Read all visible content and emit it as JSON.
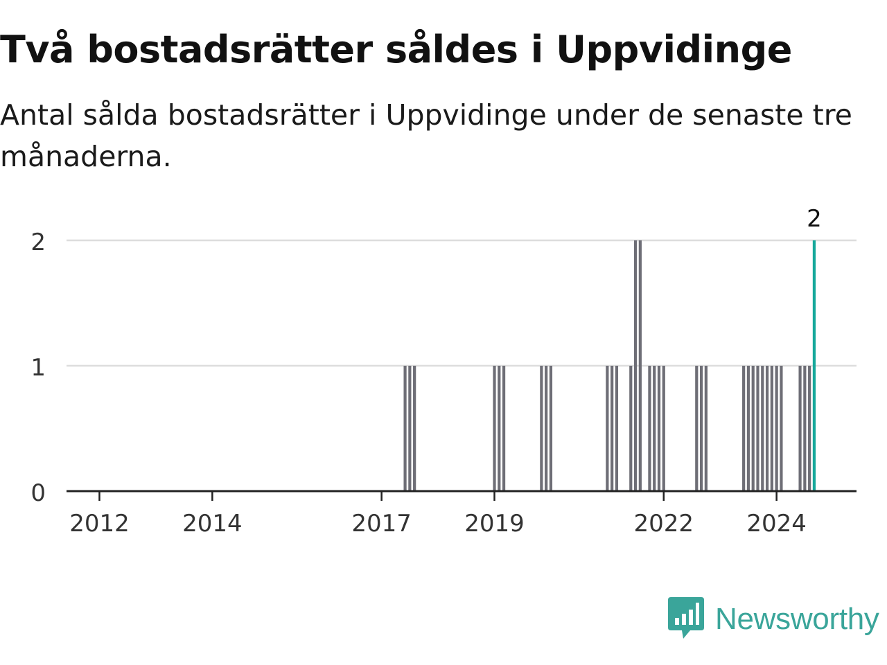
{
  "title": "Två bostadsrätter såldes i Uppvidinge",
  "subtitle": "Antal sålda bostadsrätter i Uppvidinge under de senaste tre månaderna.",
  "brand": {
    "name": "Newsworthy",
    "icon": "newsworthy-logo-icon",
    "color": "#3aa59a"
  },
  "colors": {
    "bar": "#6e6e76",
    "highlight": "#16a89b",
    "grid": "#dddddd",
    "axis": "#222222"
  },
  "chart_data": {
    "type": "bar",
    "x_unit": "month",
    "xlim": [
      "2011-06",
      "2025-06"
    ],
    "ylim": [
      0,
      2
    ],
    "yticks": [
      "0",
      "1",
      "2"
    ],
    "xticks": [
      "2012",
      "2014",
      "2017",
      "2019",
      "2022",
      "2024"
    ],
    "grid": true,
    "highlight": {
      "x": "2024-09",
      "label": "2"
    },
    "points": [
      {
        "x": "2017-06",
        "y": 1
      },
      {
        "x": "2017-07",
        "y": 1
      },
      {
        "x": "2017-08",
        "y": 1
      },
      {
        "x": "2019-01",
        "y": 1
      },
      {
        "x": "2019-02",
        "y": 1
      },
      {
        "x": "2019-03",
        "y": 1
      },
      {
        "x": "2019-11",
        "y": 1
      },
      {
        "x": "2019-12",
        "y": 1
      },
      {
        "x": "2020-01",
        "y": 1
      },
      {
        "x": "2021-01",
        "y": 1
      },
      {
        "x": "2021-02",
        "y": 1
      },
      {
        "x": "2021-03",
        "y": 1
      },
      {
        "x": "2021-06",
        "y": 1
      },
      {
        "x": "2021-07",
        "y": 2
      },
      {
        "x": "2021-08",
        "y": 2
      },
      {
        "x": "2021-10",
        "y": 1
      },
      {
        "x": "2021-11",
        "y": 1
      },
      {
        "x": "2021-12",
        "y": 1
      },
      {
        "x": "2022-01",
        "y": 1
      },
      {
        "x": "2022-08",
        "y": 1
      },
      {
        "x": "2022-09",
        "y": 1
      },
      {
        "x": "2022-10",
        "y": 1
      },
      {
        "x": "2023-06",
        "y": 1
      },
      {
        "x": "2023-07",
        "y": 1
      },
      {
        "x": "2023-08",
        "y": 1
      },
      {
        "x": "2023-09",
        "y": 1
      },
      {
        "x": "2023-10",
        "y": 1
      },
      {
        "x": "2023-11",
        "y": 1
      },
      {
        "x": "2023-12",
        "y": 1
      },
      {
        "x": "2024-01",
        "y": 1
      },
      {
        "x": "2024-02",
        "y": 1
      },
      {
        "x": "2024-06",
        "y": 1
      },
      {
        "x": "2024-07",
        "y": 1
      },
      {
        "x": "2024-08",
        "y": 1
      },
      {
        "x": "2024-09",
        "y": 2
      }
    ]
  }
}
